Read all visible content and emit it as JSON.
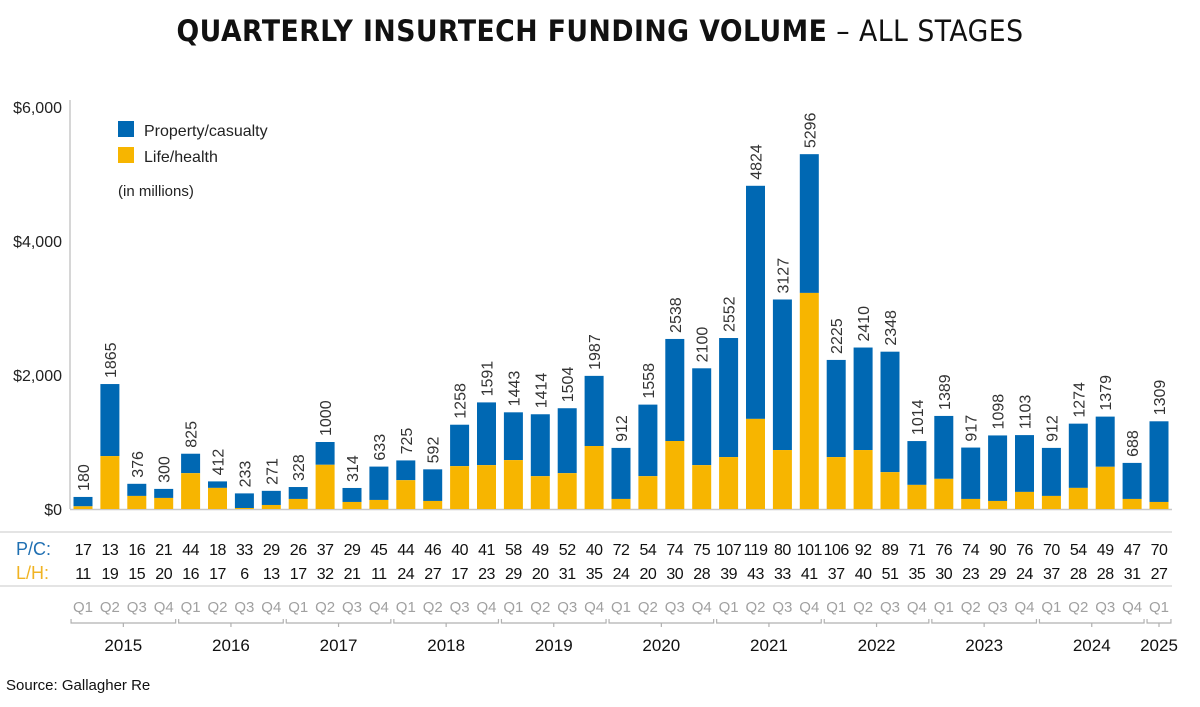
{
  "chart_data": {
    "type": "bar",
    "stacked": true,
    "title": "QUARTERLY INSURTECH FUNDING VOLUME",
    "title_suffix": "– ALL STAGES",
    "note": "(in millions)",
    "source": "Source: Gallagher Re",
    "ylabel": "",
    "xlabel": "",
    "ylim": [
      0,
      6000
    ],
    "yticks": [
      0,
      2000,
      4000,
      6000
    ],
    "ytick_labels": [
      "$0",
      "$2,000",
      "$4,000",
      "$6,000"
    ],
    "legend": {
      "placement": "top-left",
      "entries": [
        {
          "name": "Property/casualty",
          "color": "#0068b3"
        },
        {
          "name": "Life/health",
          "color": "#f7b500"
        }
      ]
    },
    "categories": [
      "Q1",
      "Q2",
      "Q3",
      "Q4",
      "Q1",
      "Q2",
      "Q3",
      "Q4",
      "Q1",
      "Q2",
      "Q3",
      "Q4",
      "Q1",
      "Q2",
      "Q3",
      "Q4",
      "Q1",
      "Q2",
      "Q3",
      "Q4",
      "Q1",
      "Q2",
      "Q3",
      "Q4",
      "Q1",
      "Q2",
      "Q3",
      "Q4",
      "Q1",
      "Q2",
      "Q3",
      "Q4",
      "Q1",
      "Q2",
      "Q3",
      "Q4",
      "Q1",
      "Q2",
      "Q3",
      "Q4",
      "Q1"
    ],
    "years": [
      {
        "label": "2015",
        "quarters": 4
      },
      {
        "label": "2016",
        "quarters": 4
      },
      {
        "label": "2017",
        "quarters": 4
      },
      {
        "label": "2018",
        "quarters": 4
      },
      {
        "label": "2019",
        "quarters": 4
      },
      {
        "label": "2020",
        "quarters": 4
      },
      {
        "label": "2021",
        "quarters": 4
      },
      {
        "label": "2022",
        "quarters": 4
      },
      {
        "label": "2023",
        "quarters": 4
      },
      {
        "label": "2024",
        "quarters": 4
      },
      {
        "label": "2025",
        "quarters": 1
      }
    ],
    "totals": [
      180,
      1865,
      376,
      300,
      825,
      412,
      233,
      271,
      328,
      1000,
      314,
      633,
      725,
      592,
      1258,
      1591,
      1443,
      1414,
      1504,
      1987,
      912,
      1558,
      2538,
      2100,
      2552,
      4824,
      3127,
      5296,
      2225,
      2410,
      2348,
      1014,
      1389,
      917,
      1098,
      1103,
      912,
      1274,
      1379,
      688,
      1309
    ],
    "series": [
      {
        "name": "Life/health",
        "color": "#f7b500",
        "values": [
          40,
          790,
          195,
          165,
          535,
          315,
          15,
          60,
          150,
          660,
          105,
          135,
          430,
          120,
          640,
          655,
          730,
          490,
          535,
          940,
          150,
          490,
          1015,
          655,
          775,
          1345,
          880,
          3225,
          775,
          880,
          550,
          360,
          450,
          150,
          120,
          255,
          195,
          315,
          630,
          150,
          105
        ]
      },
      {
        "name": "Property/casualty",
        "color": "#0068b3",
        "values": [
          140,
          1075,
          181,
          135,
          290,
          97,
          218,
          211,
          178,
          340,
          209,
          498,
          295,
          472,
          618,
          936,
          713,
          924,
          969,
          1047,
          762,
          1068,
          1523,
          1445,
          1777,
          3479,
          2247,
          2071,
          1450,
          1530,
          1798,
          654,
          939,
          767,
          978,
          848,
          717,
          959,
          749,
          538,
          1204
        ]
      }
    ],
    "deal_counts": {
      "pc_label": "P/C:",
      "lh_label": "L/H:",
      "pc_color": "#1f6fb2",
      "lh_color": "#f0b323",
      "pc": [
        17,
        13,
        16,
        21,
        44,
        18,
        33,
        29,
        26,
        37,
        29,
        45,
        44,
        46,
        40,
        41,
        58,
        49,
        52,
        40,
        72,
        54,
        74,
        75,
        107,
        119,
        80,
        101,
        106,
        92,
        89,
        71,
        76,
        74,
        90,
        76,
        70,
        54,
        49,
        47,
        70
      ],
      "lh": [
        11,
        19,
        15,
        20,
        16,
        17,
        6,
        13,
        17,
        32,
        21,
        11,
        24,
        27,
        17,
        23,
        29,
        20,
        31,
        35,
        24,
        20,
        30,
        28,
        39,
        43,
        33,
        41,
        37,
        40,
        51,
        35,
        30,
        23,
        29,
        24,
        37,
        28,
        28,
        31,
        27
      ]
    }
  }
}
